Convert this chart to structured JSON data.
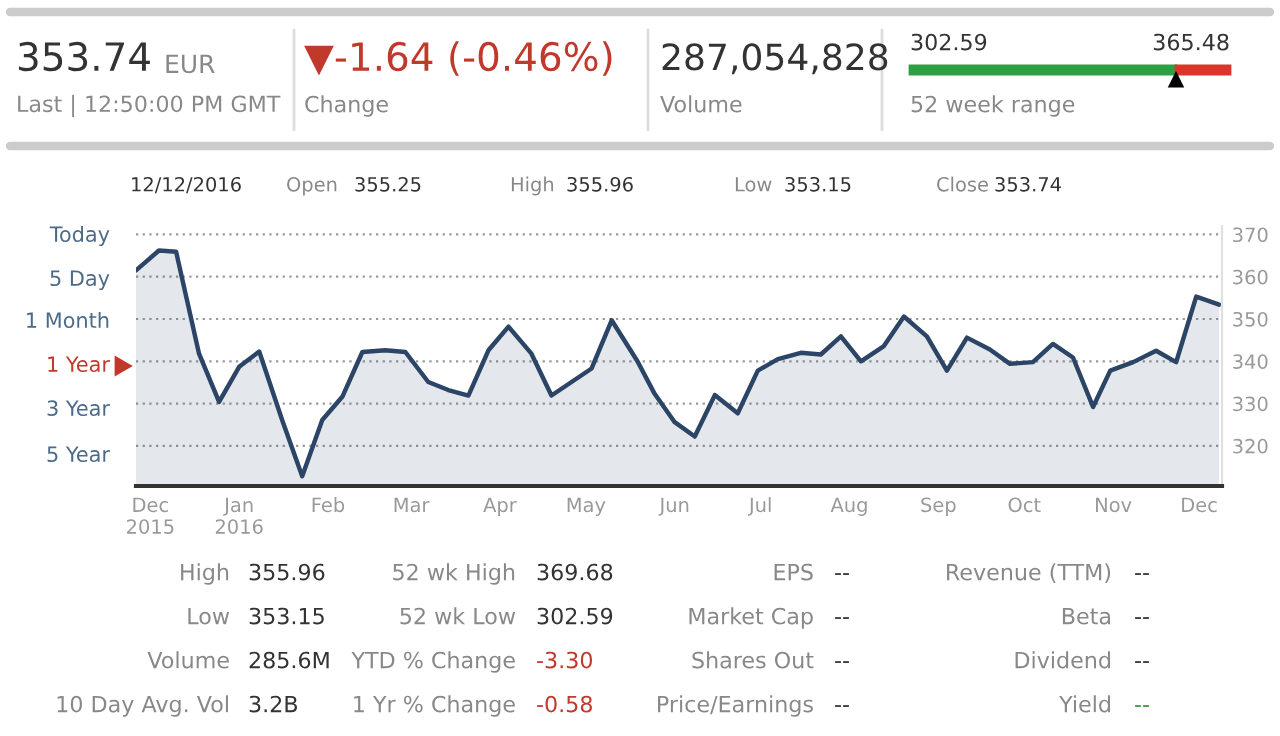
{
  "chart_data": {
    "type": "area",
    "x": [
      "2015-11-26",
      "2015-12-04",
      "2015-12-10",
      "2015-12-18",
      "2015-12-25",
      "2016-01-01",
      "2016-01-08",
      "2016-01-16",
      "2016-01-23",
      "2016-01-30",
      "2016-02-06",
      "2016-02-13",
      "2016-02-21",
      "2016-02-28",
      "2016-03-07",
      "2016-03-14",
      "2016-03-21",
      "2016-03-28",
      "2016-04-04",
      "2016-04-12",
      "2016-04-19",
      "2016-04-26",
      "2016-05-03",
      "2016-05-10",
      "2016-05-19",
      "2016-05-25",
      "2016-06-01",
      "2016-06-08",
      "2016-06-15",
      "2016-06-23",
      "2016-06-30",
      "2016-07-07",
      "2016-07-15",
      "2016-07-22",
      "2016-07-29",
      "2016-08-05",
      "2016-08-13",
      "2016-08-20",
      "2016-08-28",
      "2016-09-04",
      "2016-09-11",
      "2016-09-19",
      "2016-09-26",
      "2016-10-04",
      "2016-10-11",
      "2016-10-18",
      "2016-10-25",
      "2016-10-31",
      "2016-11-08",
      "2016-11-16",
      "2016-11-23",
      "2016-11-30",
      "2016-12-08"
    ],
    "series": [
      {
        "color": "#2c4566",
        "values": [
          361.5,
          366.2,
          365.9,
          341.8,
          330.4,
          338.7,
          342.3,
          326.1,
          312.8,
          326.1,
          331.6,
          342.2,
          342.6,
          342.2,
          335.1,
          333.2,
          331.9,
          342.6,
          348.2,
          341.8,
          331.9,
          335.1,
          338.3,
          349.7,
          340,
          332.3,
          325.6,
          322.2,
          332.0,
          327.7,
          337.8,
          340.5,
          342.0,
          341.6,
          345.9,
          340,
          343.6,
          350.6,
          345.9,
          337.8,
          345.6,
          342.8,
          339.4,
          339.8,
          344.1,
          340.9,
          329.2,
          337.8,
          339.8,
          342.5,
          339.8,
          355.3,
          353.4
        ]
      }
    ],
    "xlim": [
      "2015-11-26",
      "2016-12-09"
    ],
    "xticks": [
      {
        "value": "2015-12-01",
        "label": "Dec\n2015"
      },
      {
        "value": "2016-01-01",
        "label": "Jan\n2016"
      },
      {
        "value": "2016-02-01",
        "label": "Feb"
      },
      {
        "value": "2016-03-01",
        "label": "Mar"
      },
      {
        "value": "2016-04-01",
        "label": "Apr"
      },
      {
        "value": "2016-05-01",
        "label": "May"
      },
      {
        "value": "2016-06-01",
        "label": "Jun"
      },
      {
        "value": "2016-07-01",
        "label": "Jul"
      },
      {
        "value": "2016-08-01",
        "label": "Aug"
      },
      {
        "value": "2016-09-01",
        "label": "Sep"
      },
      {
        "value": "2016-10-01",
        "label": "Oct"
      },
      {
        "value": "2016-11-01",
        "label": "Nov"
      },
      {
        "value": "2016-12-01",
        "label": "Dec"
      }
    ],
    "ylim": [
      310.5,
      372
    ],
    "yticks": [
      320,
      330,
      340,
      350,
      360,
      370
    ],
    "grid": "y",
    "legend": false,
    "annotations": [
      "353.74",
      "EUR",
      "Last | 12:50:00 PM GMT",
      "▼-1.64 (-0.46%)",
      "Change",
      "287,054,828",
      "Volume",
      "302.59",
      "365.48",
      "52 week range",
      "12/12/2016",
      "Open",
      "355.25",
      "High",
      "355.96",
      "Low",
      "353.15",
      "Close",
      "353.74",
      "Today",
      "5 Day",
      "1 Month",
      "1 Year",
      "3 Year",
      "5 Year",
      "High",
      "355.96",
      "52 wk High",
      "369.68",
      "EPS",
      "--",
      "Revenue (TTM)",
      "--",
      "Low",
      "353.15",
      "52 wk Low",
      "302.59",
      "Market Cap",
      "--",
      "Beta",
      "--",
      "Volume",
      "285.6M",
      "YTD % Change",
      "-3.30",
      "Shares Out",
      "--",
      "Dividend",
      "--",
      "10 Day Avg. Vol",
      "3.2B",
      "1 Yr % Change",
      "-0.58",
      "Price/Earnings",
      "--",
      "Yield",
      "--"
    ]
  }
}
